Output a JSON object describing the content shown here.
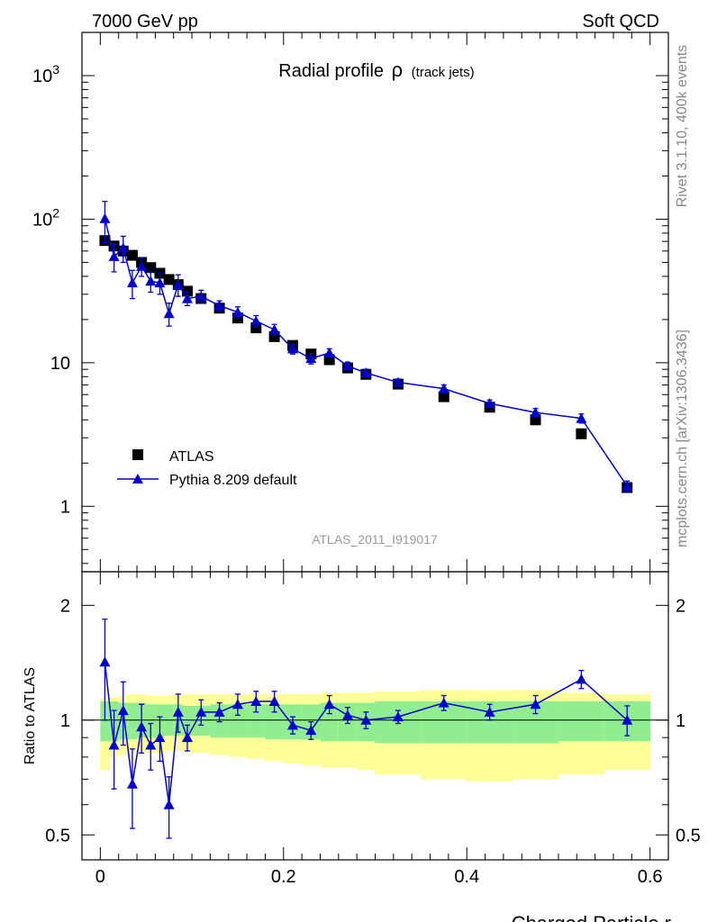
{
  "header": {
    "left": "7000 GeV pp",
    "right": "Soft QCD"
  },
  "side_text": {
    "top": "Rivet 3.1.10,  400k events",
    "bottom": "mcplots.cern.ch [arXiv:1306.3436]"
  },
  "chart_data": [
    {
      "type": "scatter",
      "title": "Radial profile",
      "title_symbol": "ρ",
      "title_suffix": "(track jets)",
      "watermark": "ATLAS_2011_I919017",
      "xlabel": "",
      "ylabel": "",
      "yscale": "log",
      "xlim": [
        -0.02,
        0.62
      ],
      "ylim": [
        0.35,
        2000
      ],
      "y_ticks": [
        {
          "value": 1000,
          "label": "10",
          "sup": "3"
        },
        {
          "value": 100,
          "label": "10",
          "sup": "2"
        },
        {
          "value": 10,
          "label": "10",
          "sup": ""
        },
        {
          "value": 1,
          "label": "1",
          "sup": ""
        }
      ],
      "legend": {
        "position": "lower-left"
      },
      "series": [
        {
          "name": "ATLAS",
          "marker": "square",
          "color": "#000000",
          "x": [
            0.005,
            0.015,
            0.025,
            0.035,
            0.045,
            0.055,
            0.065,
            0.075,
            0.085,
            0.095,
            0.11,
            0.13,
            0.15,
            0.17,
            0.19,
            0.21,
            0.23,
            0.25,
            0.27,
            0.29,
            0.325,
            0.375,
            0.425,
            0.475,
            0.525,
            0.575
          ],
          "y": [
            71,
            65,
            60,
            56,
            50,
            46,
            42,
            38,
            35,
            31.5,
            28,
            24,
            20.5,
            17.5,
            15.2,
            13.2,
            11.5,
            10.5,
            9.2,
            8.3,
            7.1,
            5.8,
            4.9,
            4.0,
            3.2,
            1.35
          ]
        },
        {
          "name": "Pythia 8.209 default",
          "marker": "triangle",
          "color": "#0000cc",
          "x": [
            0.005,
            0.015,
            0.025,
            0.035,
            0.045,
            0.055,
            0.065,
            0.075,
            0.085,
            0.095,
            0.11,
            0.13,
            0.15,
            0.17,
            0.19,
            0.21,
            0.23,
            0.25,
            0.27,
            0.29,
            0.325,
            0.375,
            0.425,
            0.475,
            0.525,
            0.575
          ],
          "y": [
            101,
            55,
            63,
            36,
            47,
            37,
            36,
            22,
            35,
            28,
            29,
            25,
            22.5,
            19.5,
            17,
            12.5,
            10.7,
            11.7,
            9.5,
            8.5,
            7.3,
            6.6,
            5.2,
            4.5,
            4.1,
            1.38
          ],
          "yerr": [
            32,
            12,
            13,
            8,
            7,
            6,
            6,
            4,
            6,
            3,
            3,
            2,
            2,
            1.8,
            1.5,
            1,
            0.9,
            0.8,
            0.6,
            0.5,
            0.4,
            0.4,
            0.3,
            0.3,
            0.3,
            0.12
          ]
        }
      ]
    },
    {
      "type": "scatter",
      "title": "",
      "xlabel": "Charged Particle r",
      "ylabel": "Ratio to ATLAS",
      "yscale": "log",
      "xlim": [
        -0.02,
        0.62
      ],
      "ylim": [
        0.43,
        2.45
      ],
      "x_ticks": [
        0,
        0.2,
        0.4,
        0.6
      ],
      "x_tick_labels": [
        "0",
        "0.2",
        "0.4",
        "0.6"
      ],
      "y_ticks": [
        0.5,
        1,
        2
      ],
      "y_tick_labels": [
        "0.5",
        "1",
        "2"
      ],
      "bands": {
        "edges": [
          0,
          0.01,
          0.02,
          0.03,
          0.04,
          0.05,
          0.06,
          0.07,
          0.08,
          0.09,
          0.1,
          0.12,
          0.14,
          0.16,
          0.18,
          0.2,
          0.22,
          0.24,
          0.26,
          0.28,
          0.3,
          0.35,
          0.4,
          0.45,
          0.5,
          0.55,
          0.6
        ],
        "stat_color": "#90ee90",
        "total_color": "#ffff99",
        "stat_lo": [
          0.88,
          0.88,
          0.89,
          0.89,
          0.9,
          0.9,
          0.9,
          0.91,
          0.91,
          0.91,
          0.91,
          0.9,
          0.9,
          0.9,
          0.89,
          0.89,
          0.89,
          0.88,
          0.88,
          0.88,
          0.87,
          0.87,
          0.87,
          0.87,
          0.88,
          0.88
        ],
        "stat_hi": [
          1.12,
          1.12,
          1.11,
          1.11,
          1.11,
          1.1,
          1.1,
          1.1,
          1.1,
          1.09,
          1.09,
          1.1,
          1.1,
          1.1,
          1.1,
          1.1,
          1.1,
          1.11,
          1.11,
          1.11,
          1.12,
          1.12,
          1.12,
          1.12,
          1.12,
          1.12
        ],
        "tot_lo": [
          0.74,
          0.8,
          0.81,
          0.82,
          0.82,
          0.82,
          0.82,
          0.83,
          0.83,
          0.83,
          0.82,
          0.81,
          0.8,
          0.79,
          0.78,
          0.77,
          0.76,
          0.75,
          0.75,
          0.74,
          0.72,
          0.7,
          0.69,
          0.7,
          0.72,
          0.74
        ],
        "tot_hi": [
          1.14,
          1.15,
          1.16,
          1.17,
          1.17,
          1.16,
          1.16,
          1.16,
          1.17,
          1.17,
          1.17,
          1.17,
          1.17,
          1.17,
          1.17,
          1.17,
          1.17,
          1.18,
          1.18,
          1.18,
          1.19,
          1.2,
          1.2,
          1.2,
          1.18,
          1.17
        ]
      },
      "series": [
        {
          "name": "Pythia 8.209 default",
          "marker": "triangle",
          "color": "#0000cc",
          "x": [
            0.005,
            0.015,
            0.025,
            0.035,
            0.045,
            0.055,
            0.065,
            0.075,
            0.085,
            0.095,
            0.11,
            0.13,
            0.15,
            0.17,
            0.19,
            0.21,
            0.23,
            0.25,
            0.27,
            0.29,
            0.325,
            0.375,
            0.425,
            0.475,
            0.525,
            0.575
          ],
          "y": [
            1.42,
            0.86,
            1.06,
            0.68,
            0.96,
            0.86,
            0.9,
            0.6,
            1.05,
            0.9,
            1.05,
            1.05,
            1.1,
            1.12,
            1.12,
            0.97,
            0.94,
            1.1,
            1.03,
            1.0,
            1.02,
            1.11,
            1.05,
            1.1,
            1.28,
            1.0
          ],
          "yerr": [
            0.42,
            0.2,
            0.2,
            0.16,
            0.14,
            0.12,
            0.12,
            0.11,
            0.12,
            0.07,
            0.08,
            0.06,
            0.07,
            0.07,
            0.07,
            0.05,
            0.05,
            0.06,
            0.05,
            0.05,
            0.04,
            0.05,
            0.05,
            0.06,
            0.07,
            0.09
          ]
        }
      ]
    }
  ]
}
